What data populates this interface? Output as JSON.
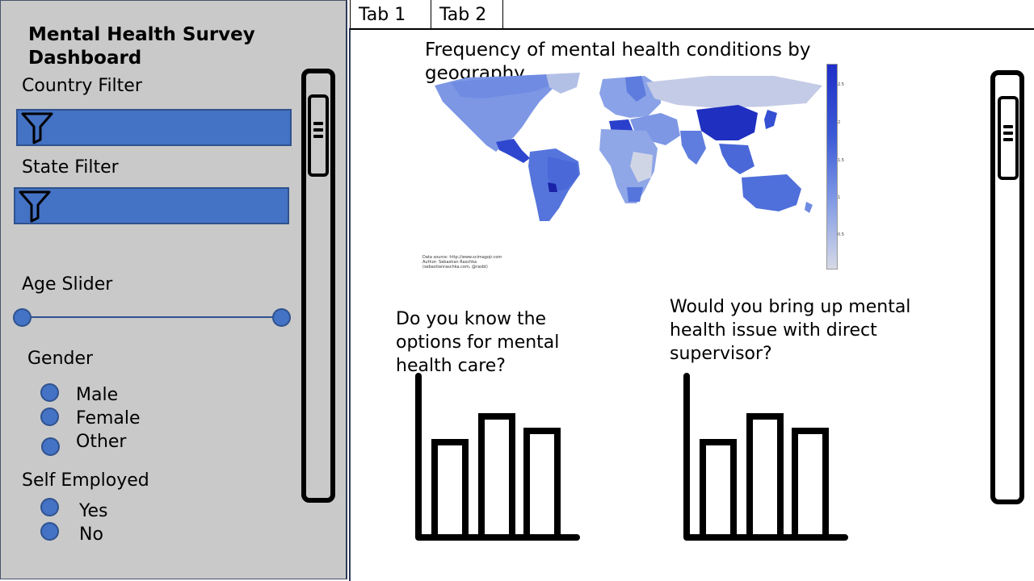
{
  "sidebar": {
    "title": "Mental Health Survey Dashboard",
    "country_filter_label": "Country Filter",
    "state_filter_label": "State Filter",
    "age_slider_label": "Age Slider",
    "gender_label": "Gender",
    "gender_options": [
      "Male",
      "Female",
      "Other"
    ],
    "self_employed_label": "Self Employed",
    "self_employed_options": [
      "Yes",
      "No"
    ],
    "accent_color": "#4472c4"
  },
  "tabs": [
    {
      "label": "Tab 1"
    },
    {
      "label": "Tab 2"
    }
  ],
  "main": {
    "map": {
      "title": "Frequency of mental health conditions by geography",
      "colorbar_ticks": [
        "2.5",
        "2",
        "1.5",
        "1",
        "0.5"
      ],
      "credit_lines": [
        "Data source: http://www.scimagojr.com",
        "Author: Sebastian Raschka",
        "(sebastianraschka.com, @rasbt)"
      ]
    },
    "question_1": "Do you know the options for mental health care?",
    "question_2": "Would you bring up mental health issue with direct supervisor?"
  }
}
